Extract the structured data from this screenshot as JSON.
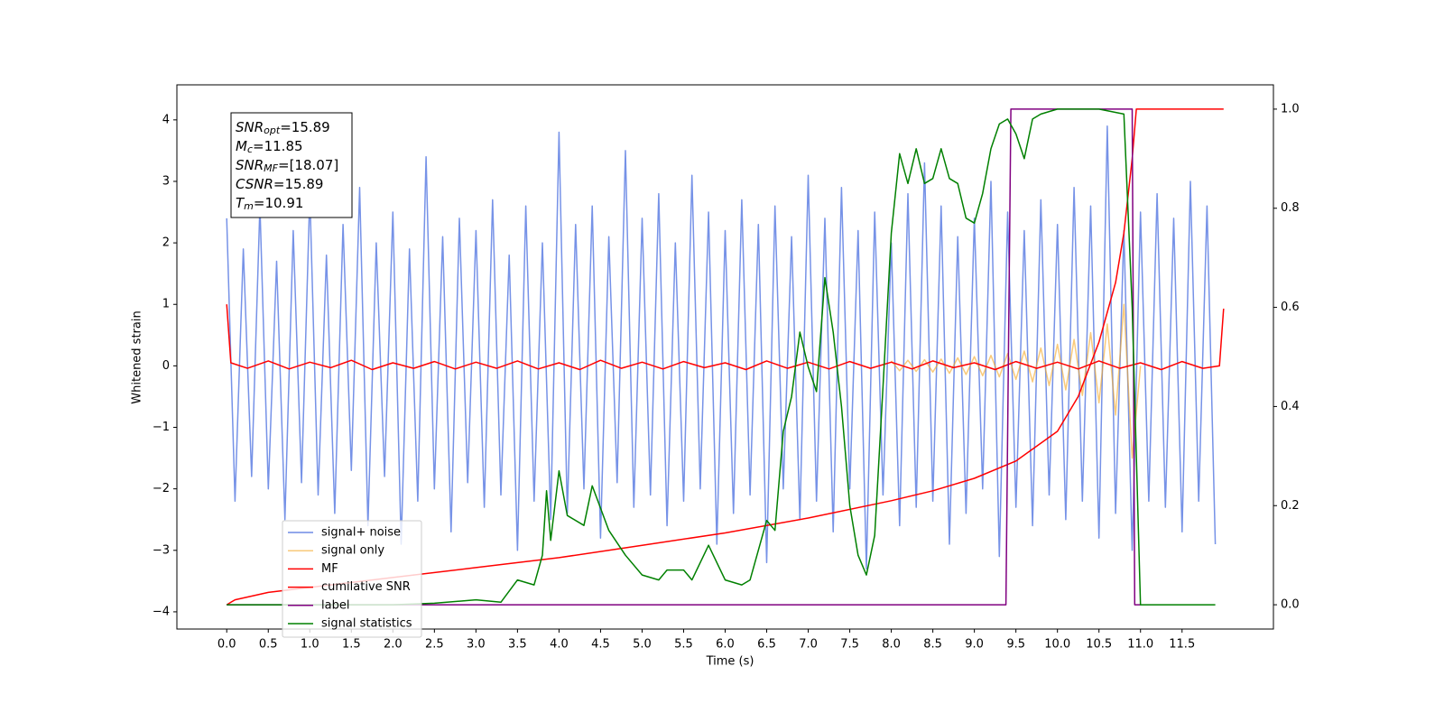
{
  "chart_data": {
    "type": "line",
    "x_label": "Time (s)",
    "y_label": "Whitened strain",
    "xlim": [
      -0.6,
      12.6
    ],
    "ylim": [
      -4.28,
      4.57
    ],
    "y2lim": [
      -0.049,
      1.049
    ],
    "xticks": [
      {
        "value": 0,
        "label": "0.0"
      },
      0.5,
      {
        "value": 1,
        "label": "1.0"
      },
      1.5,
      {
        "value": 2,
        "label": "2.0"
      },
      2.5,
      {
        "value": 3,
        "label": "3.0"
      },
      3.5,
      {
        "value": 4,
        "label": "4.0"
      },
      4.5,
      {
        "value": 5,
        "label": "5.0"
      },
      5.5,
      {
        "value": 6,
        "label": "6.0"
      },
      6.5,
      {
        "value": 7,
        "label": "7.0"
      },
      7.5,
      {
        "value": 8,
        "label": "8.0"
      },
      8.5,
      {
        "value": 9,
        "label": "9.0"
      },
      9.5,
      {
        "value": 10,
        "label": "10.0"
      },
      10.5,
      {
        "value": 11,
        "label": "11.0"
      },
      11.5
    ],
    "yticks": [
      {
        "value": -4,
        "label": "−4"
      },
      {
        "value": -3,
        "label": "−3"
      },
      {
        "value": -2,
        "label": "−2"
      },
      {
        "value": -1,
        "label": "−1"
      },
      0,
      1,
      2,
      3,
      4
    ],
    "y2ticks": [
      {
        "value": 0,
        "label": "0.0"
      },
      0.2,
      0.4,
      0.6,
      0.8,
      {
        "value": 1,
        "label": "1.0"
      }
    ],
    "legend": "lower left",
    "annotation": [
      {
        "label": "SNR",
        "sub": "opt",
        "text": "=15.89"
      },
      {
        "label": "M",
        "sub": "c",
        "text": "=11.85"
      },
      {
        "label": "SNR",
        "sub": "MF",
        "text": "=[18.07]"
      },
      {
        "label": "CSNR",
        "sub": "",
        "text": "=15.89"
      },
      {
        "label": "T",
        "sub": "m",
        "text": "=10.91"
      }
    ],
    "series": [
      {
        "name": "signal+ noise",
        "color": "#6f8ce6",
        "axis": "y",
        "x": [
          0,
          0.1,
          0.2,
          0.3,
          0.4,
          0.5,
          0.6,
          0.7,
          0.8,
          0.9,
          1,
          1.1,
          1.2,
          1.3,
          1.4,
          1.5,
          1.6,
          1.7,
          1.8,
          1.9,
          2,
          2.1,
          2.2,
          2.3,
          2.4,
          2.5,
          2.6,
          2.7,
          2.8,
          2.9,
          3,
          3.1,
          3.2,
          3.3,
          3.4,
          3.5,
          3.6,
          3.7,
          3.8,
          3.9,
          4,
          4.1,
          4.2,
          4.3,
          4.4,
          4.5,
          4.6,
          4.7,
          4.8,
          4.9,
          5,
          5.1,
          5.2,
          5.3,
          5.4,
          5.5,
          5.6,
          5.7,
          5.8,
          5.9,
          6,
          6.1,
          6.2,
          6.3,
          6.4,
          6.5,
          6.6,
          6.7,
          6.8,
          6.9,
          7,
          7.1,
          7.2,
          7.3,
          7.4,
          7.5,
          7.6,
          7.7,
          7.8,
          7.9,
          8,
          8.1,
          8.2,
          8.3,
          8.4,
          8.5,
          8.6,
          8.7,
          8.8,
          8.9,
          9,
          9.1,
          9.2,
          9.3,
          9.4,
          9.5,
          9.6,
          9.7,
          9.8,
          9.9,
          10,
          10.1,
          10.2,
          10.3,
          10.4,
          10.5,
          10.6,
          10.7,
          10.8,
          10.9,
          11,
          11.1,
          11.2,
          11.3,
          11.4,
          11.5,
          11.6,
          11.7,
          11.8,
          11.9
        ],
        "values": [
          2.4,
          -2.2,
          1.9,
          -1.8,
          2.6,
          -2.0,
          1.7,
          -2.5,
          2.2,
          -1.9,
          2.8,
          -2.1,
          1.8,
          -2.4,
          2.3,
          -1.7,
          2.9,
          -2.6,
          2.0,
          -1.8,
          2.5,
          -2.9,
          1.9,
          -2.2,
          3.4,
          -2.0,
          2.1,
          -2.7,
          2.4,
          -1.9,
          2.2,
          -2.3,
          2.7,
          -2.1,
          1.8,
          -3.0,
          2.6,
          -2.2,
          2.0,
          -2.5,
          3.8,
          -2.4,
          2.3,
          -2.0,
          2.6,
          -2.8,
          2.1,
          -1.9,
          3.5,
          -2.3,
          2.4,
          -2.1,
          2.8,
          -2.6,
          2.0,
          -2.2,
          3.1,
          -2.0,
          2.5,
          -2.9,
          2.2,
          -2.4,
          2.7,
          -2.1,
          2.3,
          -3.2,
          2.6,
          -2.0,
          2.1,
          -2.5,
          3.1,
          -2.2,
          2.4,
          -2.7,
          2.9,
          -2.0,
          2.2,
          -3.3,
          2.5,
          -2.1,
          2.0,
          -2.6,
          2.8,
          -2.3,
          3.3,
          -2.2,
          2.6,
          -2.9,
          2.1,
          -2.4,
          2.4,
          -2.0,
          3.0,
          -3.1,
          2.5,
          -2.3,
          2.2,
          -2.6,
          2.7,
          -2.1,
          2.3,
          -2.5,
          2.9,
          -2.2,
          2.6,
          -2.8,
          3.9,
          -2.4,
          2.2,
          -3.0,
          2.5,
          -2.2,
          2.8,
          -2.3,
          2.4,
          -2.7,
          3.0,
          -2.2,
          2.6,
          -2.9
        ]
      },
      {
        "name": "signal only",
        "color": "#f5a623",
        "axis": "y",
        "x": [
          8,
          8.1,
          8.2,
          8.3,
          8.4,
          8.5,
          8.6,
          8.7,
          8.8,
          8.9,
          9,
          9.1,
          9.2,
          9.3,
          9.4,
          9.5,
          9.6,
          9.7,
          9.8,
          9.9,
          10,
          10.1,
          10.2,
          10.3,
          10.4,
          10.5,
          10.6,
          10.7,
          10.8,
          10.9,
          11
        ],
        "values": [
          0.08,
          -0.08,
          0.09,
          -0.09,
          0.1,
          -0.1,
          0.11,
          -0.12,
          0.13,
          -0.14,
          0.15,
          -0.16,
          0.17,
          -0.18,
          0.2,
          -0.22,
          0.24,
          -0.26,
          0.29,
          -0.32,
          0.35,
          -0.39,
          0.43,
          -0.48,
          0.54,
          -0.6,
          0.68,
          -0.8,
          1.0,
          -1.5,
          0
        ]
      },
      {
        "name": "MF",
        "color": "#ff0000",
        "axis": "y",
        "x": [
          0,
          0.05,
          0.25,
          0.5,
          0.75,
          1,
          1.25,
          1.5,
          1.75,
          2,
          2.25,
          2.5,
          2.75,
          3,
          3.25,
          3.5,
          3.75,
          4,
          4.25,
          4.5,
          4.75,
          5,
          5.25,
          5.5,
          5.75,
          6,
          6.25,
          6.5,
          6.75,
          7,
          7.25,
          7.5,
          7.75,
          8,
          8.25,
          8.5,
          8.75,
          9,
          9.25,
          9.5,
          9.75,
          10,
          10.25,
          10.5,
          10.75,
          11,
          11.25,
          11.5,
          11.75,
          11.95,
          12
        ],
        "values": [
          1.0,
          0.05,
          -0.04,
          0.08,
          -0.05,
          0.06,
          -0.03,
          0.09,
          -0.06,
          0.05,
          -0.04,
          0.07,
          -0.05,
          0.06,
          -0.04,
          0.08,
          -0.05,
          0.05,
          -0.06,
          0.09,
          -0.04,
          0.06,
          -0.05,
          0.07,
          -0.03,
          0.05,
          -0.06,
          0.08,
          -0.04,
          0.06,
          -0.05,
          0.07,
          -0.04,
          0.06,
          -0.05,
          0.08,
          -0.03,
          0.05,
          -0.06,
          0.07,
          -0.04,
          0.06,
          -0.05,
          0.08,
          -0.04,
          0.05,
          -0.06,
          0.07,
          -0.04,
          0.0,
          0.93
        ]
      },
      {
        "name": "cumilative SNR",
        "color": "#ff0000",
        "axis": "y2",
        "x": [
          0,
          0.1,
          0.5,
          1,
          2,
          3,
          4,
          5,
          6,
          7,
          8,
          8.5,
          9,
          9.5,
          10,
          10.25,
          10.5,
          10.7,
          10.8,
          10.9,
          10.95,
          12
        ],
        "values": [
          0.0,
          0.01,
          0.025,
          0.035,
          0.055,
          0.075,
          0.095,
          0.12,
          0.145,
          0.175,
          0.21,
          0.23,
          0.255,
          0.29,
          0.35,
          0.42,
          0.53,
          0.65,
          0.75,
          0.9,
          1.0,
          1.0
        ]
      },
      {
        "name": "label",
        "color": "#800080",
        "axis": "y2",
        "x": [
          0,
          9.38,
          9.44,
          10.9,
          10.93,
          11.0
        ],
        "values": [
          0,
          0,
          1,
          1,
          0,
          0
        ]
      },
      {
        "name": "signal statistics",
        "color": "#008000",
        "axis": "y2",
        "x": [
          0,
          1,
          2,
          2.5,
          3,
          3.3,
          3.5,
          3.7,
          3.8,
          3.85,
          3.9,
          4.0,
          4.1,
          4.3,
          4.4,
          4.6,
          4.8,
          5.0,
          5.2,
          5.3,
          5.5,
          5.6,
          5.8,
          6.0,
          6.2,
          6.3,
          6.5,
          6.6,
          6.7,
          6.8,
          6.9,
          7.0,
          7.1,
          7.2,
          7.3,
          7.4,
          7.5,
          7.6,
          7.7,
          7.8,
          7.9,
          8.0,
          8.1,
          8.2,
          8.3,
          8.4,
          8.5,
          8.6,
          8.7,
          8.8,
          8.9,
          9.0,
          9.1,
          9.2,
          9.3,
          9.4,
          9.5,
          9.6,
          9.7,
          9.8,
          10.0,
          10.5,
          10.8,
          10.9,
          11.0,
          11.9
        ],
        "values": [
          0,
          0,
          0,
          0.003,
          0.01,
          0.005,
          0.05,
          0.04,
          0.1,
          0.23,
          0.13,
          0.27,
          0.18,
          0.16,
          0.24,
          0.15,
          0.1,
          0.06,
          0.05,
          0.07,
          0.07,
          0.05,
          0.12,
          0.05,
          0.04,
          0.05,
          0.17,
          0.15,
          0.35,
          0.42,
          0.55,
          0.48,
          0.43,
          0.66,
          0.55,
          0.4,
          0.2,
          0.1,
          0.06,
          0.14,
          0.44,
          0.75,
          0.91,
          0.85,
          0.92,
          0.85,
          0.86,
          0.92,
          0.86,
          0.85,
          0.78,
          0.77,
          0.83,
          0.92,
          0.97,
          0.98,
          0.95,
          0.9,
          0.98,
          0.99,
          1.0,
          1.0,
          0.99,
          0.6,
          0.0,
          0.0
        ]
      }
    ]
  }
}
